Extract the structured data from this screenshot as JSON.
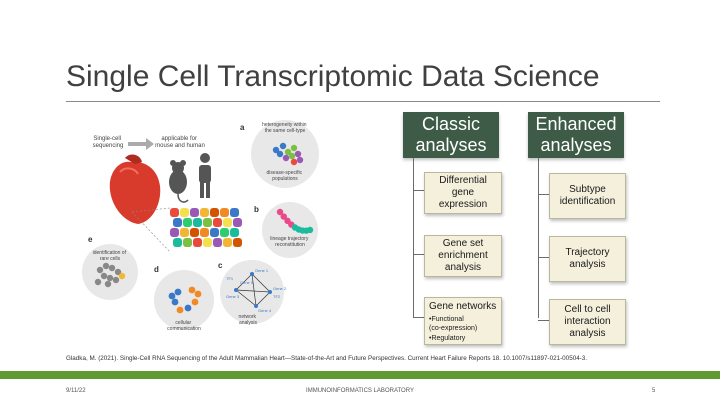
{
  "slide": {
    "title": "Single Cell Transcriptomic Data Science",
    "citation": "Gladka, M. (2021). Single-Cell RNA Sequencing of the Adult Mammalian Heart—State-of-the-Art and Future Perspectives. Current Heart Failure Reports 18. 10.1007/s11897-021-00504-3.",
    "footer": {
      "date": "9/11/22",
      "center": "IMMUNOINFORMATICS LABORATORY",
      "page": "5"
    },
    "colors": {
      "header_green": "#3d5b46",
      "box_fill": "#f4f0dc",
      "footer_green": "#5f9a32"
    }
  },
  "figure": {
    "label_sc": "Single-cell\nsequencing",
    "label_applicable": "applicable for\nmouse and human",
    "panel_a_label": "a",
    "panel_a_top": "heterogeneity within\nthe same cell-type",
    "panel_a_bottom": "disease-specific\npopulations",
    "panel_b_label": "b",
    "panel_b_text": "lineage trajectory\nreconstitution",
    "panel_c_label": "c",
    "panel_c_text": "network\nanalysis",
    "panel_d_label": "d",
    "panel_d_text": "cellular\ncommunication",
    "panel_e_label": "e",
    "panel_e_text": "identification of\nrare cells",
    "genes": [
      "Gene 1",
      "Gene 2",
      "Gene 3",
      "Gene 4",
      "Gene 5",
      "TF1",
      "TF2"
    ]
  },
  "classic": {
    "header": "Classic\nanalyses",
    "items": [
      {
        "label": "Differential gene\nexpression"
      },
      {
        "label": "Gene set\nenrichment\nanalysis"
      },
      {
        "label": "Gene networks",
        "subs": [
          "•Functional\n(co-expression)",
          "•Regulatory"
        ]
      }
    ]
  },
  "enhanced": {
    "header": "Enhanced\nanalyses",
    "items": [
      {
        "label": "Subtype\nidentification"
      },
      {
        "label": "Trajectory\nanalysis"
      },
      {
        "label": "Cell to cell\ninteraction\nanalysis"
      }
    ]
  }
}
